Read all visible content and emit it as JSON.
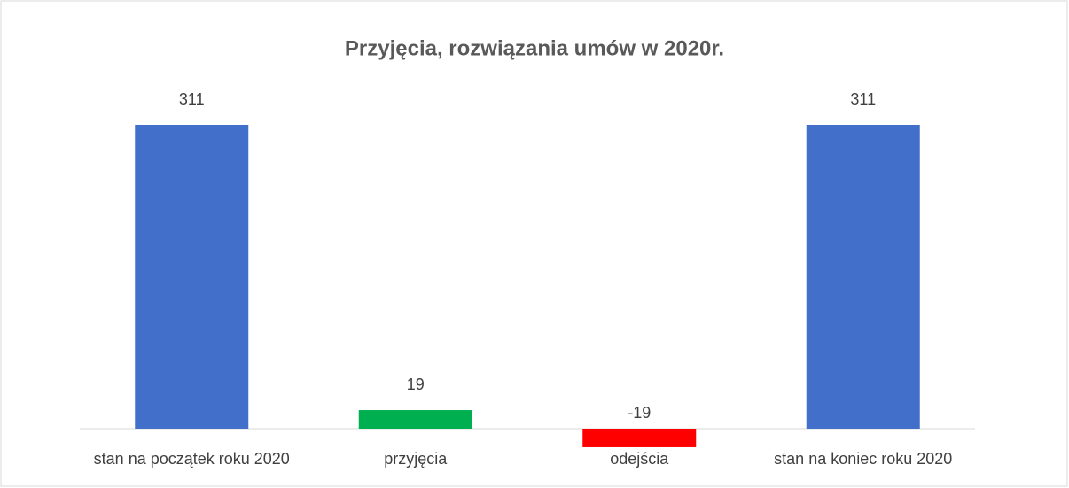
{
  "chart_data": {
    "type": "bar",
    "title": "Przyjęcia, rozwiązania umów w 2020r.",
    "categories": [
      "stan na początek roku 2020",
      "przyjęcia",
      "odejścia",
      "stan na koniec roku 2020"
    ],
    "values": [
      311,
      19,
      -19,
      311
    ],
    "colors": [
      "#416fca",
      "#00b050",
      "#ff0000",
      "#416fca"
    ]
  }
}
